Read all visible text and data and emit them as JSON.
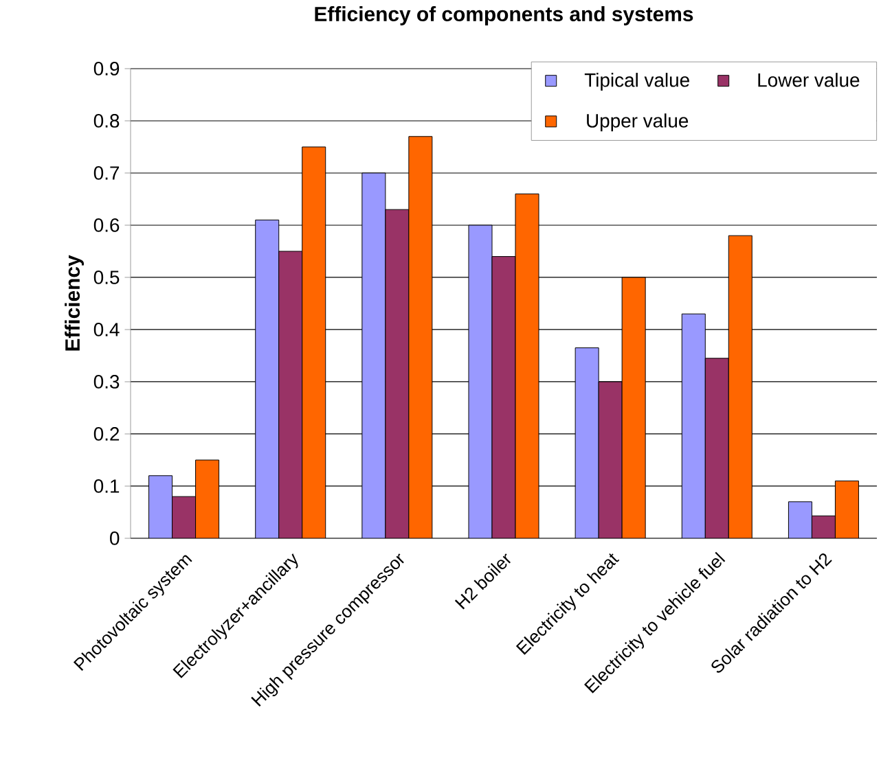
{
  "chart_data": {
    "type": "bar",
    "title": "Efficiency of components and systems",
    "ylabel": "Efficiency",
    "categories": [
      "Photovoltaic system",
      "Electrolyzer+ancillary",
      "High pressure compressor",
      "H2 boiler",
      "Electricity to heat",
      "Electricity to vehicle fuel",
      "Solar radiation to H2"
    ],
    "series": [
      {
        "name": "Tipical value",
        "color": "#9999ff",
        "values": [
          0.12,
          0.61,
          0.7,
          0.6,
          0.365,
          0.43,
          0.07
        ]
      },
      {
        "name": "Lower value",
        "color": "#993366",
        "values": [
          0.08,
          0.55,
          0.63,
          0.54,
          0.3,
          0.345,
          0.043
        ]
      },
      {
        "name": "Upper value",
        "color": "#ff6600",
        "values": [
          0.15,
          0.75,
          0.77,
          0.66,
          0.5,
          0.58,
          0.11
        ]
      }
    ],
    "ylim": [
      0,
      0.9
    ],
    "yticks": [
      0,
      0.1,
      0.2,
      0.3,
      0.4,
      0.5,
      0.6,
      0.7,
      0.8,
      0.9
    ],
    "grid": "y",
    "legend": "top right"
  }
}
